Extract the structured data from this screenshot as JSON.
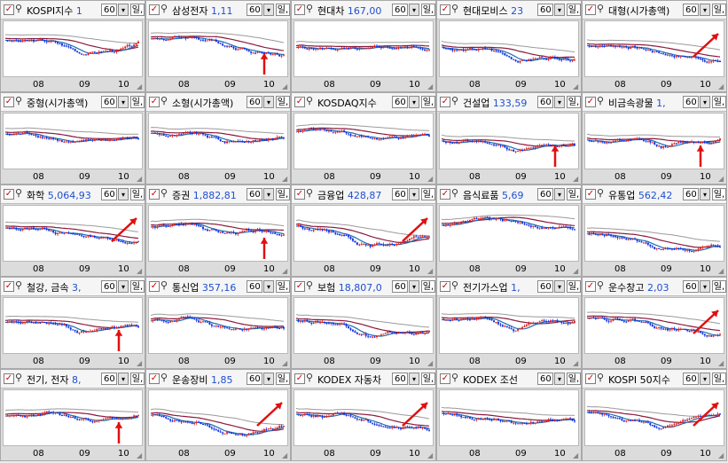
{
  "panels": [
    {
      "name": "KOSPI지수",
      "price": "1",
      "period": "60",
      "unit": "일,",
      "xticks": [
        "08",
        "09",
        "10"
      ],
      "arrow": "none"
    },
    {
      "name": "삼성전자",
      "price": "1,11",
      "period": "60",
      "unit": "일,",
      "xticks": [
        "08",
        "09",
        "10"
      ],
      "arrow": "up"
    },
    {
      "name": "현대차",
      "price": "167,00",
      "period": "60",
      "unit": "일,",
      "xticks": [
        "08",
        "09",
        "10"
      ],
      "arrow": "none"
    },
    {
      "name": "현대모비스",
      "price": "23",
      "period": "60",
      "unit": "일,",
      "xticks": [
        "08",
        "09",
        "10"
      ],
      "arrow": "none"
    },
    {
      "name": "대형(시가총액)",
      "price": "",
      "period": "60",
      "unit": "일,",
      "xticks": [
        "08",
        "09",
        "10"
      ],
      "arrow": "diag"
    },
    {
      "name": "중형(시가총액)",
      "price": "",
      "period": "60",
      "unit": "일,",
      "xticks": [
        "08",
        "09",
        "10"
      ],
      "arrow": "none"
    },
    {
      "name": "소형(시가총액)",
      "price": "",
      "period": "60",
      "unit": "일,",
      "xticks": [
        "08",
        "09",
        "10"
      ],
      "arrow": "none"
    },
    {
      "name": "KOSDAQ지수",
      "price": "",
      "period": "60",
      "unit": "일,",
      "xticks": [
        "08",
        "09",
        "10"
      ],
      "arrow": "none"
    },
    {
      "name": "건설업",
      "price": "133,59",
      "period": "60",
      "unit": "일,",
      "xticks": [
        "08",
        "09",
        "10"
      ],
      "arrow": "up"
    },
    {
      "name": "비금속광물",
      "price": "1,",
      "period": "60",
      "unit": "일,",
      "xticks": [
        "08",
        "09",
        "10"
      ],
      "arrow": "up"
    },
    {
      "name": "화학",
      "price": "5,064,93",
      "period": "60",
      "unit": "일,",
      "xticks": [
        "08",
        "09",
        "10"
      ],
      "arrow": "diag"
    },
    {
      "name": "증권",
      "price": "1,882,81",
      "period": "60",
      "unit": "일,",
      "xticks": [
        "08",
        "09",
        "10"
      ],
      "arrow": "up"
    },
    {
      "name": "금융업",
      "price": "428,87",
      "period": "60",
      "unit": "일,",
      "xticks": [
        "08",
        "09",
        "10"
      ],
      "arrow": "diag"
    },
    {
      "name": "음식료품",
      "price": "5,69",
      "period": "60",
      "unit": "일,",
      "xticks": [
        "08",
        "09",
        "10"
      ],
      "arrow": "none"
    },
    {
      "name": "유통업",
      "price": "562,42",
      "period": "60",
      "unit": "일,",
      "xticks": [
        "08",
        "09",
        "10"
      ],
      "arrow": "none"
    },
    {
      "name": "철강, 금속",
      "price": "3,",
      "period": "60",
      "unit": "일,",
      "xticks": [
        "08",
        "09",
        "10"
      ],
      "arrow": "up"
    },
    {
      "name": "통신업",
      "price": "357,16",
      "period": "60",
      "unit": "일,",
      "xticks": [
        "08",
        "09",
        "10"
      ],
      "arrow": "none"
    },
    {
      "name": "보험",
      "price": "18,807,0",
      "period": "60",
      "unit": "일,",
      "xticks": [
        "08",
        "09",
        "10"
      ],
      "arrow": "none"
    },
    {
      "name": "전기가스업",
      "price": "1,",
      "period": "60",
      "unit": "일,",
      "xticks": [
        "08",
        "09",
        "10"
      ],
      "arrow": "none"
    },
    {
      "name": "운수창고",
      "price": "2,03",
      "period": "60",
      "unit": "일,",
      "xticks": [
        "08",
        "09",
        "10"
      ],
      "arrow": "diag"
    },
    {
      "name": "전기, 전자",
      "price": "8,",
      "period": "60",
      "unit": "일,",
      "xticks": [
        "08",
        "09",
        "10"
      ],
      "arrow": "up"
    },
    {
      "name": "운송장비",
      "price": "1,85",
      "period": "60",
      "unit": "일,",
      "xticks": [
        "08",
        "09",
        "10"
      ],
      "arrow": "diag"
    },
    {
      "name": "KODEX 자동차",
      "price": "",
      "period": "60",
      "unit": "일,",
      "xticks": [
        "08",
        "09",
        "10"
      ],
      "arrow": "diag"
    },
    {
      "name": "KODEX 조선",
      "price": "",
      "period": "60",
      "unit": "일,",
      "xticks": [
        "08",
        "09",
        "10"
      ],
      "arrow": "none"
    },
    {
      "name": "KOSPI 50지수",
      "price": "",
      "period": "60",
      "unit": "일,",
      "xticks": [
        "08",
        "09",
        "10"
      ],
      "arrow": "diag"
    }
  ],
  "colors": {
    "candle_up": "#e02020",
    "candle_down": "#1030e0",
    "ma_fast": "#1e6fb0",
    "ma_mid": "#8b1a3a",
    "ma_slow": "#9a9a9a",
    "arrow": "#e01010"
  }
}
